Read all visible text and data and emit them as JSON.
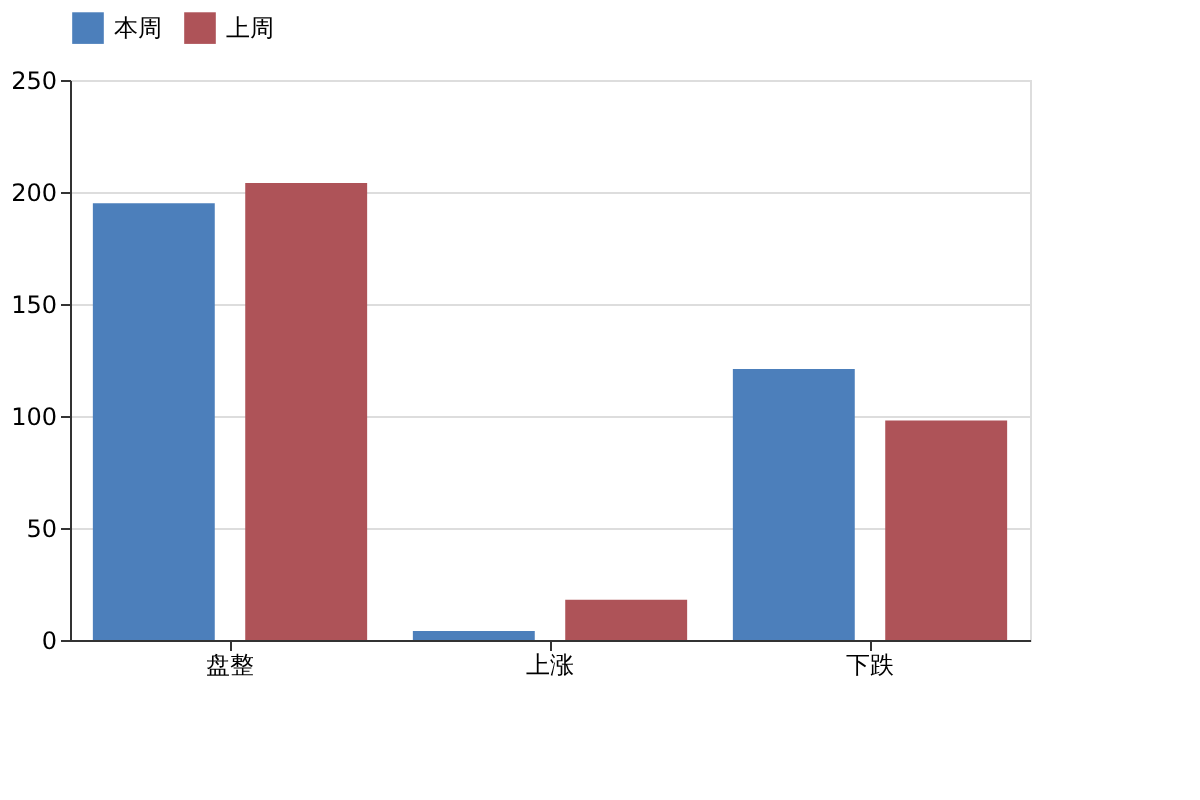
{
  "chart_data": {
    "type": "bar",
    "categories": [
      "盘整",
      "上涨",
      "下跌"
    ],
    "series": [
      {
        "name": "本周",
        "color": "#4c7fbb",
        "values": [
          195,
          4,
          121
        ]
      },
      {
        "name": "上周",
        "color": "#ae5358",
        "values": [
          204,
          18,
          98
        ]
      }
    ],
    "ylim": [
      0,
      250
    ],
    "yticks": [
      0,
      50,
      100,
      150,
      200,
      250
    ],
    "grid": "y",
    "legend": "top"
  }
}
